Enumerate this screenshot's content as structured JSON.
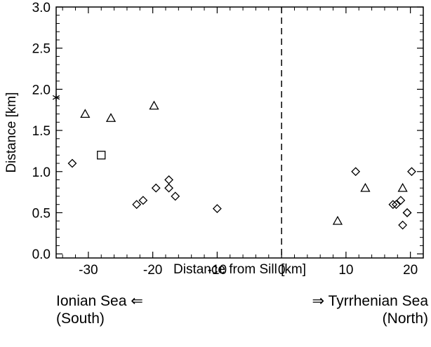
{
  "chart_data": {
    "type": "scatter",
    "xlabel": "Distance from Sill [km]",
    "ylabel": "Distance [km]",
    "xlim": [
      -35,
      22
    ],
    "ylim": [
      -0.05,
      3.0
    ],
    "x_ticks": [
      -30,
      -20,
      -10,
      0,
      10,
      20
    ],
    "x_tick_labels": [
      "-30",
      "-20",
      "-10",
      "0",
      "10",
      "20"
    ],
    "y_ticks": [
      0.0,
      0.5,
      1.0,
      1.5,
      2.0,
      2.5,
      3.0
    ],
    "y_tick_labels": [
      "0.0",
      "0.5",
      "1.0",
      "1.5",
      "2.0",
      "2.5",
      "3.0"
    ],
    "reference_line": {
      "x": 0,
      "style": "dashed"
    },
    "grid": false,
    "series": [
      {
        "marker": "diamond",
        "x": [
          -32.5,
          -22.5,
          -21.5,
          -19.5,
          -17.5,
          -17.5,
          -16.5,
          -10,
          11.5,
          17.3,
          17.8,
          18.5,
          18.8,
          19.5,
          20.2,
          19.5
        ],
        "y": [
          1.1,
          0.6,
          0.65,
          0.8,
          0.9,
          0.8,
          0.7,
          0.55,
          1.0,
          0.6,
          0.6,
          0.65,
          0.35,
          0.5,
          1.0,
          0.5
        ]
      },
      {
        "marker": "triangle",
        "x": [
          -30.5,
          -26.5,
          -19.8,
          8.7,
          13,
          18.8
        ],
        "y": [
          1.7,
          1.65,
          1.8,
          0.4,
          0.8,
          0.8
        ]
      },
      {
        "marker": "square",
        "x": [
          -28
        ],
        "y": [
          1.2
        ]
      },
      {
        "marker": "asterisk",
        "x": [
          -35
        ],
        "y": [
          1.9
        ]
      }
    ]
  },
  "captions": {
    "left_line1": "Ionian Sea ⇐",
    "left_line2": "(South)",
    "right_line1": "⇒ Tyrrhenian Sea",
    "right_line2": "(North)"
  }
}
